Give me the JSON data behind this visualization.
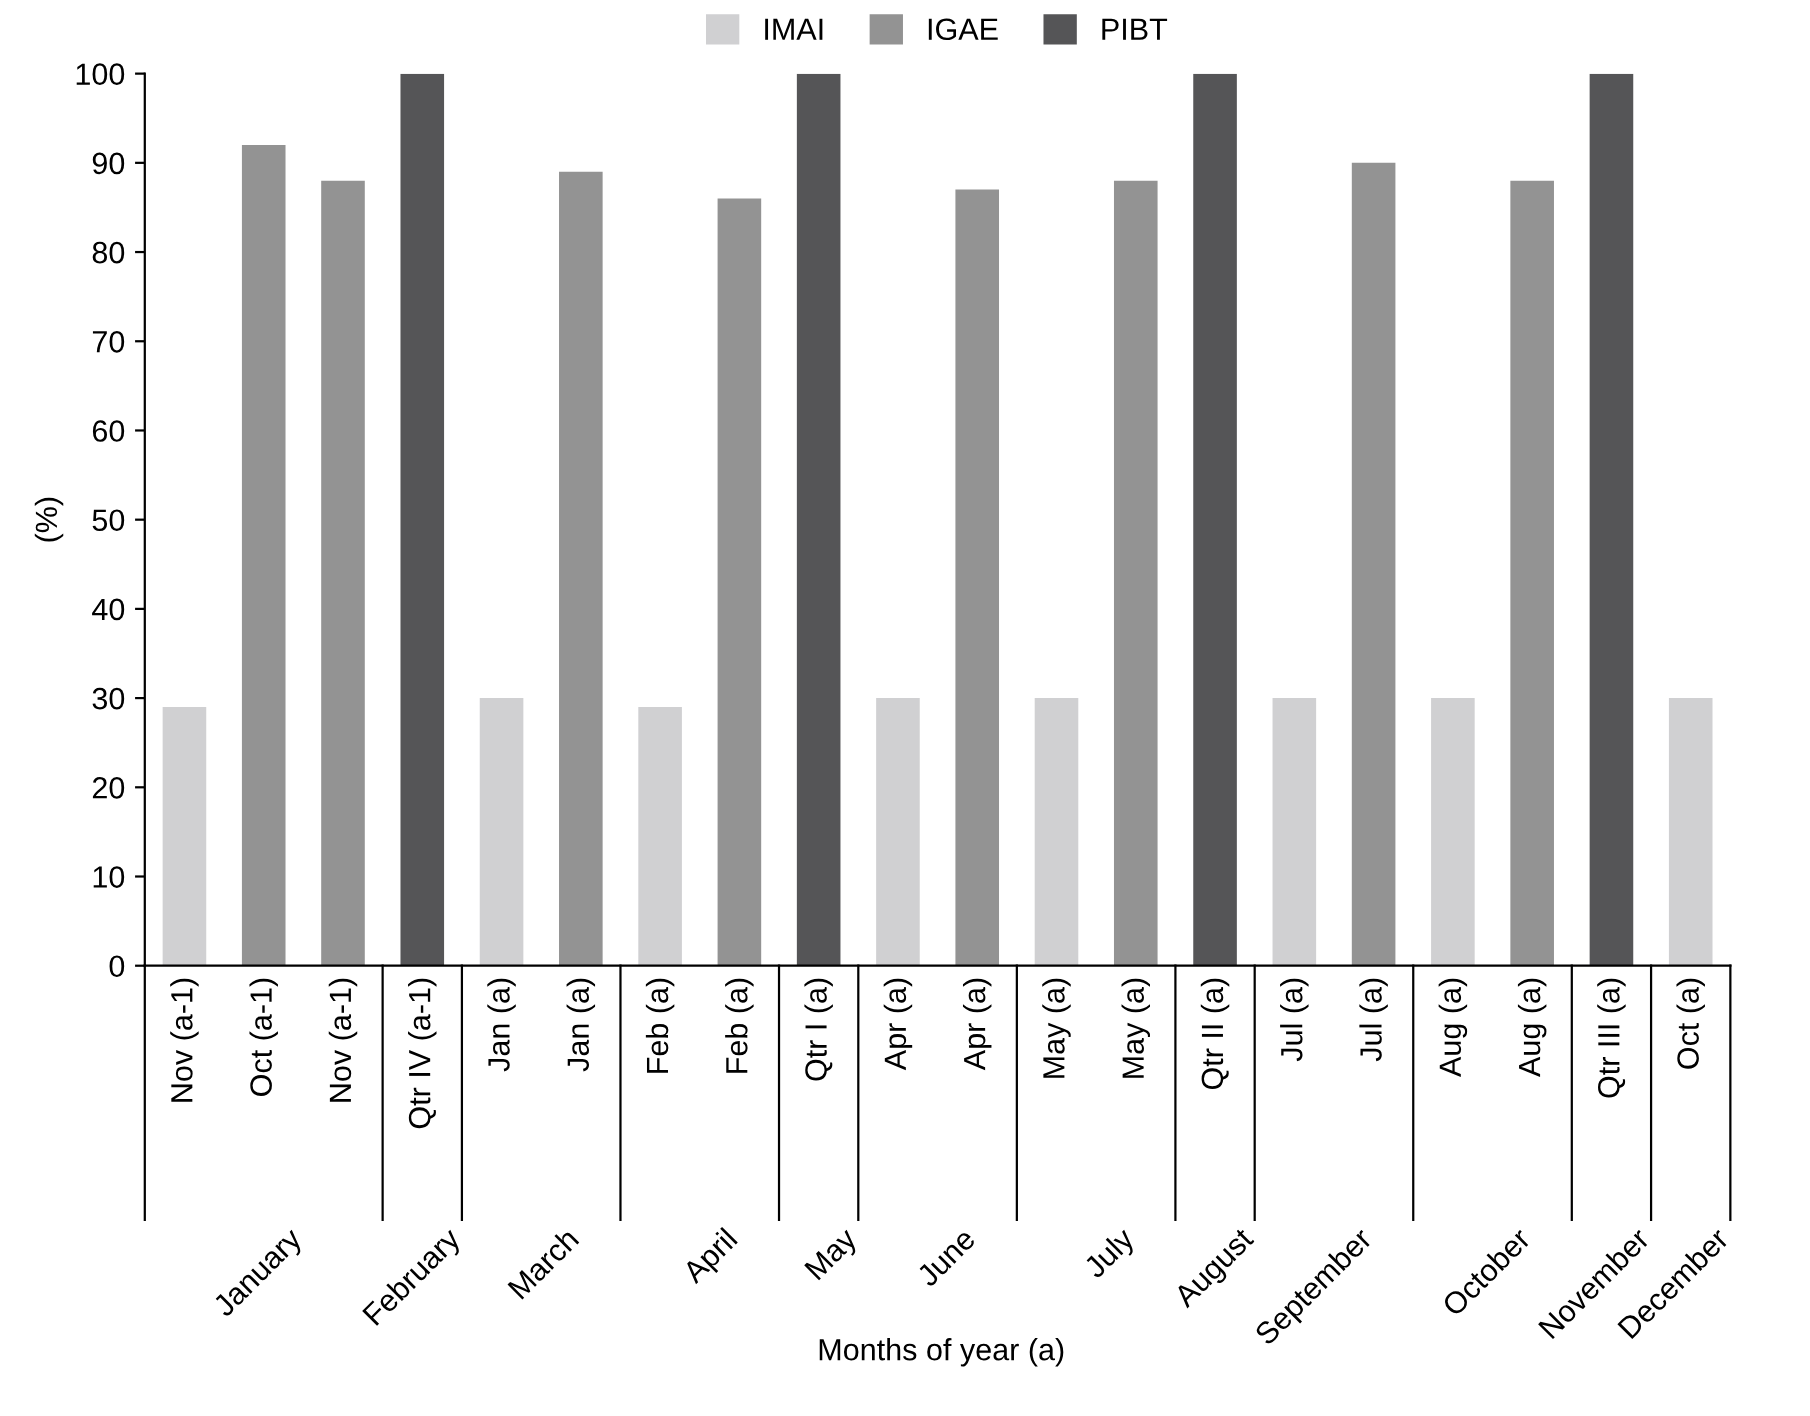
{
  "chart_data": {
    "type": "bar",
    "ylabel": "(%)",
    "categories": [
      "Nov (a-1)",
      "Oct (a-1)",
      "Nov (a-1)",
      "Qtr IV (a-1)",
      "Jan (a)",
      "Jan (a)",
      "Feb (a)",
      "Feb (a)",
      "Qtr I (a)",
      "Apr (a)",
      "Apr (a)",
      "May (a)",
      "May (a)",
      "Qtr II (a)",
      "Jul (a)",
      "Jul (a)",
      "Aug (a)",
      "Aug (a)",
      "Qtr III (a)",
      "Oct (a)"
    ],
    "series": [
      {
        "name": "IMAI",
        "color": "#d0d0d2",
        "values": [
          29,
          null,
          null,
          null,
          30,
          null,
          29,
          null,
          null,
          30,
          null,
          30,
          null,
          null,
          30,
          null,
          30,
          null,
          null,
          30
        ]
      },
      {
        "name": "IGAE",
        "color": "#939393",
        "values": [
          null,
          92,
          88,
          null,
          null,
          89,
          null,
          86,
          null,
          null,
          87,
          null,
          88,
          null,
          null,
          90,
          null,
          88,
          null,
          null
        ]
      },
      {
        "name": "PIBT",
        "color": "#555557",
        "values": [
          null,
          null,
          null,
          100,
          null,
          null,
          null,
          null,
          100,
          null,
          null,
          null,
          null,
          100,
          null,
          null,
          null,
          null,
          100,
          null
        ]
      }
    ],
    "annotations": [
      "January",
      "February",
      "March",
      "April",
      "May",
      "June",
      "July",
      "August",
      "September",
      "October",
      "November",
      "December",
      "Months of year (a)"
    ],
    "ylim": [
      0,
      100
    ],
    "yticks": [
      0,
      10,
      20,
      30,
      40,
      50,
      60,
      70,
      80,
      90,
      100
    ],
    "grid": false,
    "legend": "top"
  }
}
